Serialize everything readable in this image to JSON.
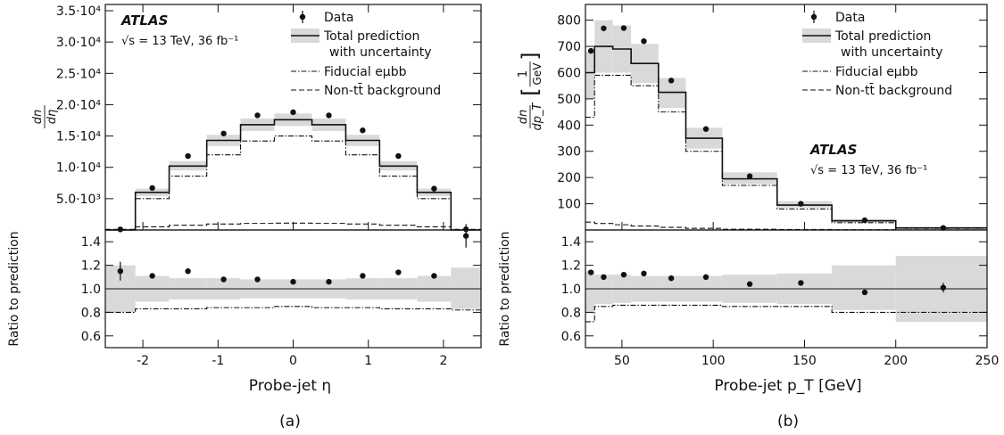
{
  "chart_data": [
    {
      "type": "line",
      "panel_label": "(a)",
      "xlabel": "Probe-jet η",
      "ylabel_num": "dn",
      "ylabel_den": "dη",
      "ratio_ylabel": "Ratio to prediction",
      "xlim": [
        -2.5,
        2.5
      ],
      "ylim": [
        0,
        36000
      ],
      "ratio_ylim": [
        0.5,
        1.5
      ],
      "x_ticks": [
        -2,
        -1,
        0,
        1,
        2
      ],
      "x_tick_labels": [
        "-2",
        "-1",
        "0",
        "1",
        "2"
      ],
      "y_ticks": [
        5000,
        10000,
        15000,
        20000,
        25000,
        30000,
        35000
      ],
      "y_tick_labels": [
        "5.0·10³",
        "1.0·10⁴",
        "1.5·10⁴",
        "2.0·10⁴",
        "2.5·10⁴",
        "3.0·10⁴",
        "3.5·10⁴"
      ],
      "ratio_ticks": [
        0.6,
        0.8,
        1.0,
        1.2,
        1.4
      ],
      "ratio_tick_labels": [
        "0.6",
        "0.8",
        "1.0",
        "1.2",
        "1.4"
      ],
      "experiment": "ATLAS",
      "energy_label": "√s = 13 TeV, 36 fb⁻¹",
      "legend_position": "top-right",
      "legend": {
        "data": "Data",
        "total_line1": "Total prediction",
        "total_line2": "with uncertainty",
        "fiducial": "Fiducial eμbb",
        "background": "Non-tt̄ background"
      },
      "bin_edges": [
        -2.5,
        -2.1,
        -1.65,
        -1.15,
        -0.7,
        -0.25,
        0.25,
        0.7,
        1.15,
        1.65,
        2.1,
        2.5
      ],
      "series": [
        {
          "name": "Total prediction",
          "values": [
            0,
            6000,
            10200,
            14300,
            16800,
            17600,
            16800,
            14300,
            10200,
            6000,
            0
          ]
        },
        {
          "name": "uncertainty",
          "lower": [
            0,
            5400,
            9500,
            13400,
            15800,
            16600,
            15800,
            13400,
            9500,
            5400,
            0
          ],
          "upper": [
            0,
            6600,
            11000,
            15200,
            17800,
            18600,
            17800,
            15200,
            11000,
            6600,
            0
          ]
        },
        {
          "name": "Fiducial eμbb",
          "values": [
            0,
            5000,
            8600,
            12000,
            14200,
            15000,
            14200,
            12000,
            8600,
            5000,
            0
          ]
        },
        {
          "name": "Non-tt̄ background",
          "values": [
            100,
            500,
            750,
            950,
            1050,
            1100,
            1050,
            950,
            750,
            500,
            100
          ]
        },
        {
          "name": "Data",
          "x": [
            -2.3,
            -1.875,
            -1.4,
            -0.925,
            -0.475,
            0,
            0.475,
            0.925,
            1.4,
            1.875,
            2.3
          ],
          "values": [
            90,
            6700,
            11800,
            15400,
            18300,
            18800,
            18300,
            15900,
            11800,
            6600,
            110
          ]
        },
        {
          "name": "Ratio",
          "x": [
            -2.3,
            -1.875,
            -1.4,
            -0.925,
            -0.475,
            0,
            0.475,
            0.925,
            1.4,
            1.875,
            2.3
          ],
          "values": [
            1.15,
            1.11,
            1.15,
            1.08,
            1.08,
            1.06,
            1.06,
            1.11,
            1.14,
            1.11,
            1.45
          ],
          "errors": [
            0.08,
            0.01,
            0.01,
            0.01,
            0.01,
            0.01,
            0.01,
            0.01,
            0.01,
            0.01,
            0.1
          ]
        },
        {
          "name": "Ratio uncertainty",
          "lower": [
            0.8,
            0.89,
            0.91,
            0.91,
            0.92,
            0.92,
            0.92,
            0.91,
            0.91,
            0.89,
            0.83
          ],
          "upper": [
            1.2,
            1.11,
            1.09,
            1.09,
            1.08,
            1.08,
            1.08,
            1.09,
            1.09,
            1.11,
            1.18
          ]
        },
        {
          "name": "Fiducial ratio",
          "values": [
            0.8,
            0.83,
            0.83,
            0.84,
            0.84,
            0.85,
            0.84,
            0.84,
            0.83,
            0.83,
            0.82
          ]
        }
      ]
    },
    {
      "type": "line",
      "panel_label": "(b)",
      "xlabel": "Probe-jet p_T [GeV]",
      "ylabel_num": "dn",
      "ylabel_den": "dp_T",
      "yunit_num": "1",
      "yunit_den": "GeV",
      "ratio_ylabel": "Ratio to prediction",
      "xlim": [
        30,
        250
      ],
      "ylim": [
        0,
        860
      ],
      "ratio_ylim": [
        0.5,
        1.5
      ],
      "x_ticks": [
        50,
        100,
        150,
        200,
        250
      ],
      "x_tick_labels": [
        "50",
        "100",
        "150",
        "200",
        "250"
      ],
      "y_ticks": [
        100,
        200,
        300,
        400,
        500,
        600,
        700,
        800
      ],
      "y_tick_labels": [
        "100",
        "200",
        "300",
        "400",
        "500",
        "600",
        "700",
        "800"
      ],
      "ratio_ticks": [
        0.6,
        0.8,
        1.0,
        1.2,
        1.4
      ],
      "ratio_tick_labels": [
        "0.6",
        "0.8",
        "1.0",
        "1.2",
        "1.4"
      ],
      "experiment": "ATLAS",
      "energy_label": "√s = 13 TeV, 36 fb⁻¹",
      "legend_position": "top-right",
      "legend": {
        "data": "Data",
        "total_line1": "Total prediction",
        "total_line2": "with uncertainty",
        "fiducial": "Fiducial eμbb",
        "background": "Non-tt̄ background"
      },
      "bin_edges": [
        30,
        35,
        45,
        55,
        70,
        85,
        105,
        135,
        165,
        200,
        250
      ],
      "series": [
        {
          "name": "Total prediction",
          "values": [
            600,
            700,
            690,
            635,
            525,
            350,
            195,
            95,
            35,
            8
          ]
        },
        {
          "name": "uncertainty",
          "lower": [
            500,
            600,
            600,
            560,
            465,
            310,
            175,
            85,
            30,
            6
          ],
          "upper": [
            680,
            800,
            780,
            710,
            580,
            390,
            220,
            110,
            42,
            11
          ]
        },
        {
          "name": "Fiducial eμbb",
          "values": [
            430,
            590,
            590,
            550,
            450,
            300,
            170,
            80,
            28,
            6
          ]
        },
        {
          "name": "Non-tt̄ background",
          "values": [
            30,
            25,
            20,
            15,
            10,
            6,
            3,
            2,
            1,
            0.3
          ]
        },
        {
          "name": "Data",
          "x": [
            33,
            40,
            51,
            62,
            77,
            96,
            120,
            148,
            183,
            226
          ],
          "values": [
            683,
            769,
            770,
            720,
            570,
            385,
            205,
            100,
            37,
            8
          ]
        },
        {
          "name": "Ratio",
          "x": [
            33,
            40,
            51,
            62,
            77,
            96,
            120,
            148,
            183,
            226
          ],
          "values": [
            1.14,
            1.1,
            1.12,
            1.13,
            1.09,
            1.1,
            1.04,
            1.05,
            0.97,
            1.01
          ],
          "errors": [
            0.01,
            0.01,
            0.01,
            0.01,
            0.01,
            0.01,
            0.01,
            0.01,
            0.02,
            0.04
          ]
        },
        {
          "name": "Ratio uncertainty",
          "lower": [
            0.79,
            0.87,
            0.88,
            0.89,
            0.89,
            0.89,
            0.88,
            0.87,
            0.82,
            0.72
          ],
          "upper": [
            1.15,
            1.12,
            1.12,
            1.11,
            1.11,
            1.11,
            1.12,
            1.13,
            1.2,
            1.28
          ]
        },
        {
          "name": "Fiducial ratio",
          "values": [
            0.72,
            0.85,
            0.86,
            0.86,
            0.86,
            0.86,
            0.85,
            0.85,
            0.8,
            0.8
          ]
        }
      ]
    }
  ]
}
